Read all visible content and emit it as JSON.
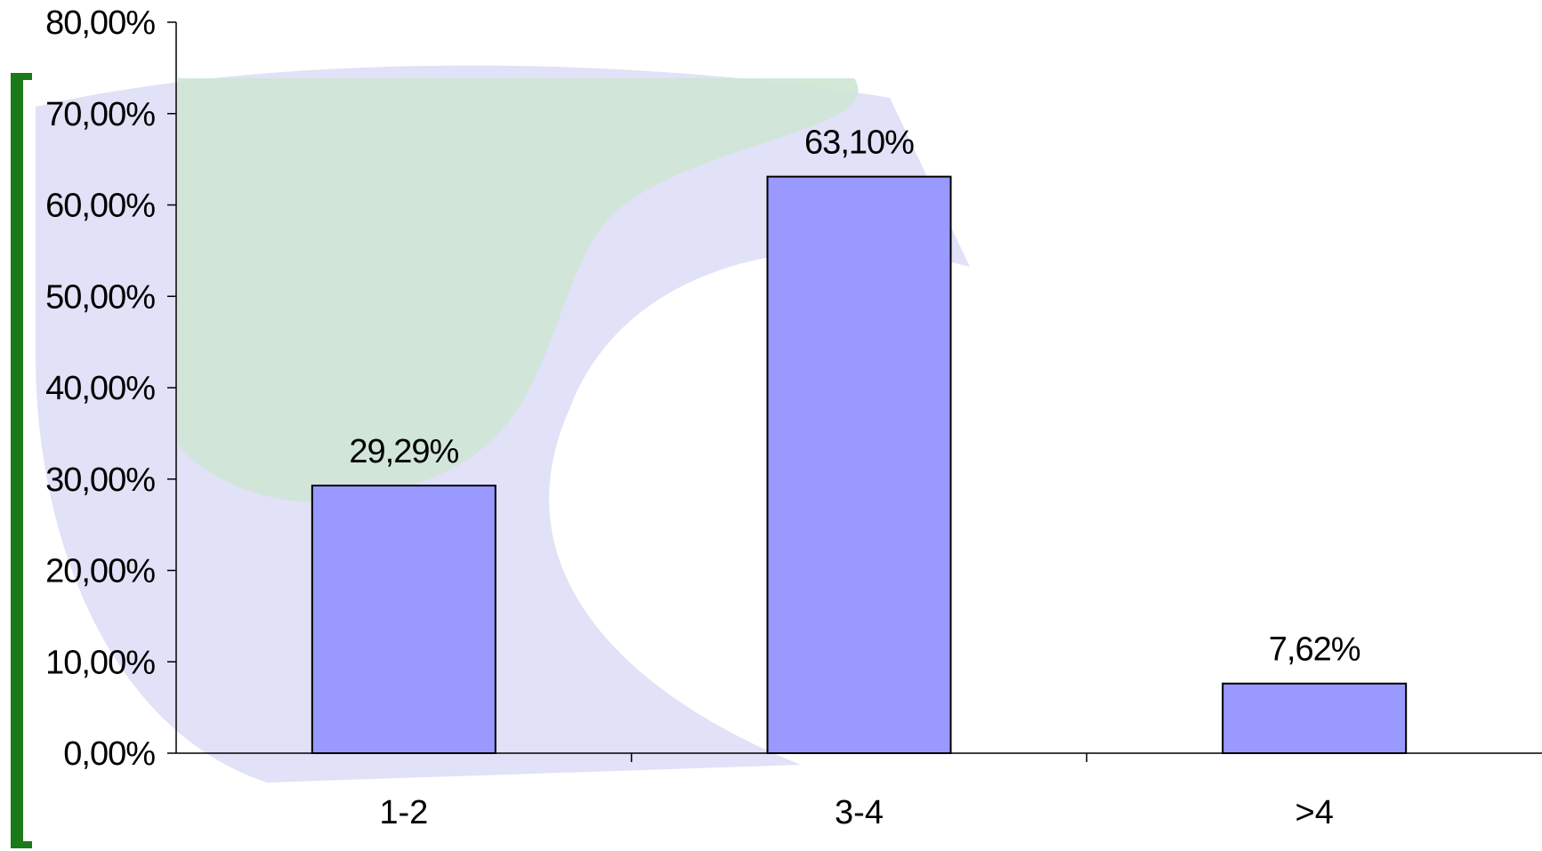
{
  "colors": {
    "bar_fill": "#9999ff",
    "bar_stroke": "#000000",
    "axis": "#000000",
    "accent_bracket": "#1a7a1a",
    "watermark_green": "#cfe6d4",
    "watermark_blue": "#dcdcf6"
  },
  "chart_data": {
    "type": "bar",
    "categories": [
      "1-2",
      "3-4",
      ">4"
    ],
    "values": [
      29.29,
      63.1,
      7.62
    ],
    "data_labels": [
      "29,29%",
      "63,10%",
      "7,62%"
    ],
    "y_ticks": [
      0,
      10,
      20,
      30,
      40,
      50,
      60,
      70,
      80
    ],
    "y_tick_labels": [
      "0,00%",
      "10,00%",
      "20,00%",
      "30,00%",
      "40,00%",
      "50,00%",
      "60,00%",
      "70,00%",
      "80,00%"
    ],
    "ylim": [
      0,
      80
    ],
    "grid": false,
    "legend": "none"
  }
}
